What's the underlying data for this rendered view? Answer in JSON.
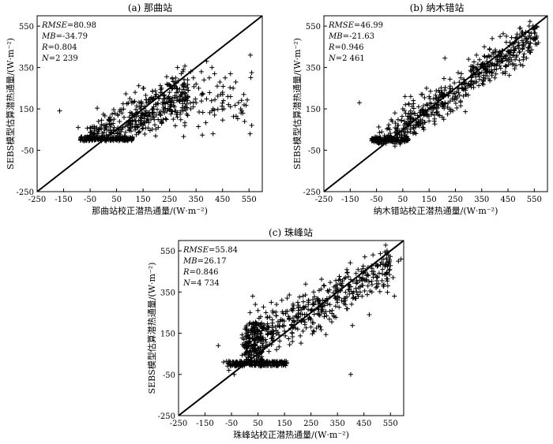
{
  "chart_data": [
    {
      "type": "scatter",
      "title": "(a) 那曲站",
      "xlabel": "那曲站校正潜热通量/(W·m⁻²)",
      "ylabel": "SEBS模型估算潜热通量/(W·m⁻²)",
      "xlim": [
        -250,
        600
      ],
      "ylim": [
        -250,
        600
      ],
      "x_ticks": [
        "-250",
        "-150",
        "-50",
        "50",
        "150",
        "250",
        "350",
        "450",
        "550"
      ],
      "y_ticks": [
        "550",
        "350",
        "150",
        "-50",
        "-250"
      ],
      "reference_line": "1:1",
      "stats": {
        "RMSE": {
          "label": "RMSE",
          "value": "=80.98"
        },
        "MB": {
          "label": "MB",
          "value": "=-34.79"
        },
        "R": {
          "label": "R",
          "value": "=0.804"
        },
        "N": {
          "label": "N",
          "value": "=2 239"
        }
      },
      "center_mode": "a",
      "points": [
        [
          -165,
          140
        ],
        [
          -95,
          60
        ],
        [
          10,
          -5
        ],
        [
          30,
          5
        ],
        [
          40,
          30
        ],
        [
          60,
          50
        ],
        [
          80,
          20
        ],
        [
          100,
          60
        ],
        [
          120,
          90
        ],
        [
          140,
          150
        ],
        [
          160,
          130
        ],
        [
          170,
          180
        ],
        [
          190,
          160
        ],
        [
          200,
          220
        ],
        [
          210,
          200
        ],
        [
          220,
          250
        ],
        [
          230,
          150
        ],
        [
          240,
          270
        ],
        [
          250,
          230
        ],
        [
          260,
          300
        ],
        [
          270,
          280
        ],
        [
          280,
          350
        ],
        [
          290,
          210
        ],
        [
          300,
          330
        ],
        [
          310,
          260
        ],
        [
          320,
          240
        ],
        [
          330,
          330
        ],
        [
          340,
          300
        ],
        [
          350,
          270
        ],
        [
          360,
          250
        ],
        [
          370,
          330
        ],
        [
          380,
          290
        ],
        [
          390,
          380
        ],
        [
          400,
          300
        ],
        [
          410,
          350
        ],
        [
          420,
          320
        ],
        [
          430,
          260
        ],
        [
          440,
          280
        ],
        [
          450,
          230
        ],
        [
          460,
          300
        ],
        [
          470,
          210
        ],
        [
          480,
          320
        ],
        [
          490,
          250
        ],
        [
          500,
          280
        ],
        [
          510,
          180
        ],
        [
          520,
          130
        ],
        [
          530,
          220
        ],
        [
          555,
          410
        ],
        [
          560,
          70
        ],
        [
          560,
          325
        ],
        [
          455,
          150
        ],
        [
          480,
          160
        ],
        [
          410,
          140
        ],
        [
          420,
          120
        ],
        [
          350,
          180
        ],
        [
          330,
          150
        ],
        [
          260,
          190
        ],
        [
          120,
          230
        ],
        [
          150,
          250
        ],
        [
          100,
          200
        ],
        [
          180,
          100
        ],
        [
          200,
          120
        ],
        [
          220,
          80
        ],
        [
          70,
          130
        ],
        [
          40,
          100
        ],
        [
          -40,
          25
        ],
        [
          -60,
          10
        ],
        [
          -20,
          40
        ],
        [
          0,
          70
        ],
        [
          20,
          100
        ]
      ]
    },
    {
      "type": "scatter",
      "title": "(b) 纳木错站",
      "xlabel": "纳木错站校正潜热通量/(W·m⁻²)",
      "ylabel": "SEBS模型估算潜热通量/(W·m⁻²)",
      "xlim": [
        -250,
        600
      ],
      "ylim": [
        -250,
        600
      ],
      "x_ticks": [
        "-250",
        "-150",
        "-50",
        "50",
        "150",
        "250",
        "350",
        "450",
        "550"
      ],
      "y_ticks": [
        "550",
        "350",
        "150",
        "-50",
        "-250"
      ],
      "reference_line": "1:1",
      "stats": {
        "RMSE": {
          "label": "RMSE",
          "value": "=46.99"
        },
        "MB": {
          "label": "MB",
          "value": "=-21.63"
        },
        "R": {
          "label": "R",
          "value": "=0.946"
        },
        "N": {
          "label": "N",
          "value": "=2 461"
        }
      },
      "center_mode": "b",
      "points": [
        [
          -115,
          180
        ],
        [
          -60,
          5
        ],
        [
          -40,
          10
        ],
        [
          -20,
          20
        ],
        [
          0,
          50
        ],
        [
          10,
          90
        ],
        [
          20,
          130
        ],
        [
          30,
          70
        ],
        [
          50,
          150
        ],
        [
          70,
          100
        ],
        [
          90,
          60
        ],
        [
          110,
          160
        ],
        [
          130,
          140
        ],
        [
          150,
          210
        ],
        [
          170,
          120
        ],
        [
          190,
          230
        ],
        [
          210,
          180
        ],
        [
          230,
          260
        ],
        [
          250,
          210
        ],
        [
          270,
          300
        ],
        [
          290,
          250
        ],
        [
          310,
          330
        ],
        [
          330,
          280
        ],
        [
          350,
          360
        ],
        [
          370,
          310
        ],
        [
          390,
          370
        ],
        [
          410,
          400
        ],
        [
          430,
          380
        ],
        [
          450,
          430
        ],
        [
          470,
          410
        ],
        [
          490,
          470
        ],
        [
          510,
          450
        ],
        [
          530,
          520
        ],
        [
          550,
          490
        ],
        [
          560,
          545
        ],
        [
          565,
          470
        ],
        [
          520,
          395
        ],
        [
          480,
          360
        ],
        [
          440,
          330
        ],
        [
          400,
          300
        ],
        [
          270,
          165
        ],
        [
          240,
          140
        ],
        [
          200,
          110
        ],
        [
          170,
          90
        ],
        [
          130,
          50
        ],
        [
          100,
          30
        ],
        [
          20,
          -30
        ],
        [
          40,
          -20
        ],
        [
          210,
          395
        ],
        [
          140,
          250
        ],
        [
          120,
          220
        ],
        [
          90,
          190
        ],
        [
          60,
          170
        ],
        [
          80,
          210
        ],
        [
          330,
          410
        ],
        [
          360,
          450
        ],
        [
          390,
          490
        ],
        [
          420,
          500
        ],
        [
          380,
          440
        ],
        [
          300,
          390
        ]
      ]
    },
    {
      "type": "scatter",
      "title": "(c) 珠峰站",
      "xlabel": "珠峰站校正潜热通量/(W·m⁻²)",
      "ylabel": "SEBS模型估算潜热通量/(W·m⁻²)",
      "xlim": [
        -250,
        600
      ],
      "ylim": [
        -250,
        600
      ],
      "x_ticks": [
        "-250",
        "-150",
        "-50",
        "50",
        "150",
        "250",
        "350",
        "450",
        "550"
      ],
      "y_ticks": [
        "550",
        "350",
        "150",
        "-50",
        "-250"
      ],
      "reference_line": "1:1",
      "stats": {
        "RMSE": {
          "label": "RMSE",
          "value": "=55.84"
        },
        "MB": {
          "label": "MB",
          "value": "=26.17"
        },
        "R": {
          "label": "R",
          "value": "=0.846"
        },
        "N": {
          "label": "N",
          "value": "=4 734"
        }
      },
      "center_mode": "c",
      "points": [
        [
          -100,
          90
        ],
        [
          -80,
          10
        ],
        [
          -60,
          -30
        ],
        [
          -40,
          -50
        ],
        [
          -20,
          -10
        ],
        [
          0,
          80
        ],
        [
          10,
          140
        ],
        [
          20,
          200
        ],
        [
          20,
          250
        ],
        [
          30,
          330
        ],
        [
          40,
          290
        ],
        [
          50,
          260
        ],
        [
          60,
          230
        ],
        [
          80,
          250
        ],
        [
          100,
          300
        ],
        [
          120,
          290
        ],
        [
          140,
          310
        ],
        [
          160,
          320
        ],
        [
          180,
          270
        ],
        [
          200,
          300
        ],
        [
          220,
          330
        ],
        [
          240,
          290
        ],
        [
          260,
          350
        ],
        [
          280,
          310
        ],
        [
          300,
          380
        ],
        [
          320,
          360
        ],
        [
          340,
          330
        ],
        [
          360,
          390
        ],
        [
          380,
          420
        ],
        [
          400,
          410
        ],
        [
          420,
          440
        ],
        [
          440,
          450
        ],
        [
          460,
          430
        ],
        [
          480,
          450
        ],
        [
          500,
          420
        ],
        [
          520,
          460
        ],
        [
          540,
          380
        ],
        [
          560,
          420
        ],
        [
          565,
          330
        ],
        [
          580,
          500
        ],
        [
          590,
          510
        ],
        [
          470,
          240
        ],
        [
          480,
          350
        ],
        [
          400,
          -50
        ],
        [
          300,
          230
        ],
        [
          250,
          180
        ],
        [
          200,
          170
        ],
        [
          150,
          160
        ],
        [
          100,
          150
        ],
        [
          60,
          120
        ],
        [
          80,
          90
        ],
        [
          120,
          70
        ],
        [
          180,
          110
        ],
        [
          220,
          160
        ],
        [
          260,
          200
        ],
        [
          330,
          260
        ],
        [
          380,
          320
        ],
        [
          430,
          370
        ],
        [
          350,
          300
        ],
        [
          280,
          240
        ]
      ]
    }
  ]
}
